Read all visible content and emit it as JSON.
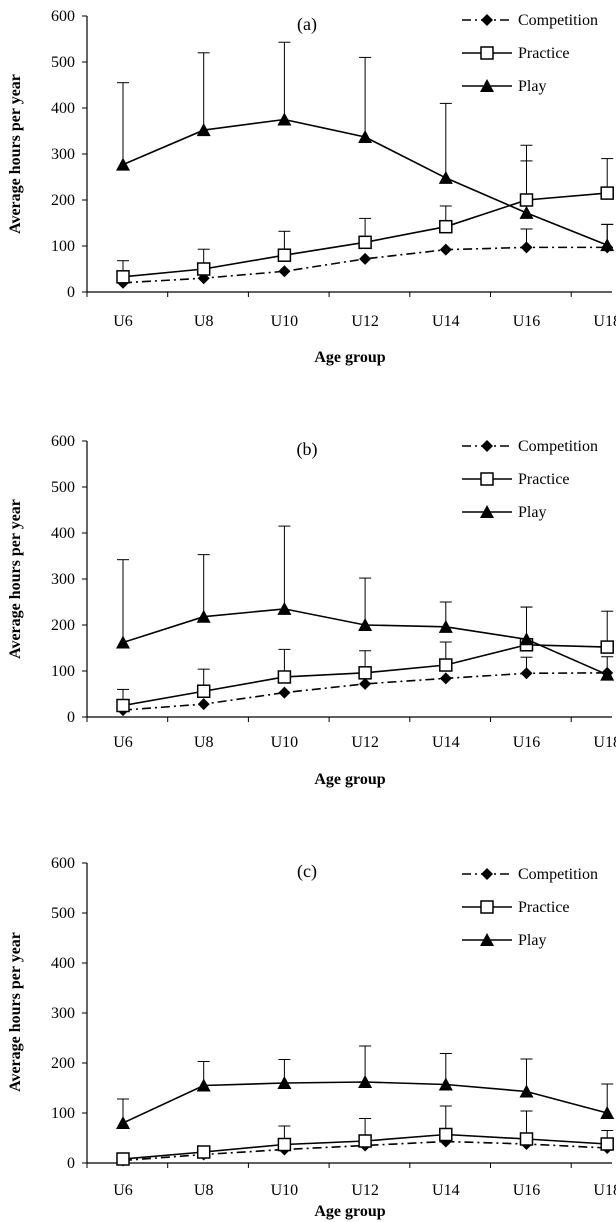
{
  "chart_data": [
    {
      "type": "line",
      "panel_label": "(a)",
      "xlabel": "Age group",
      "ylabel": "Average hours per year",
      "ylim": [
        0,
        600
      ],
      "yticks": [
        0,
        100,
        200,
        300,
        400,
        500,
        600
      ],
      "categories": [
        "U6",
        "U8",
        "U10",
        "U12",
        "U14",
        "U16",
        "U18"
      ],
      "legend_position": "top-right",
      "series": [
        {
          "name": "Competition",
          "marker": "diamond",
          "line": "dash-dot",
          "values": [
            20,
            30,
            45,
            72,
            92,
            97,
            97
          ],
          "errors": [
            0,
            0,
            0,
            0,
            0,
            40,
            50
          ]
        },
        {
          "name": "Practice",
          "marker": "open-square",
          "line": "solid",
          "values": [
            33,
            50,
            80,
            108,
            142,
            200,
            215
          ],
          "errors": [
            35,
            43,
            52,
            52,
            45,
            85,
            75
          ]
        },
        {
          "name": "Play",
          "marker": "triangle",
          "line": "solid",
          "values": [
            277,
            352,
            375,
            337,
            248,
            172,
            102
          ],
          "errors": [
            178,
            168,
            168,
            173,
            162,
            147,
            45
          ]
        }
      ]
    },
    {
      "type": "line",
      "panel_label": "(b)",
      "xlabel": "Age group",
      "ylabel": "Average hours per year",
      "ylim": [
        0,
        600
      ],
      "yticks": [
        0,
        100,
        200,
        300,
        400,
        500,
        600
      ],
      "categories": [
        "U6",
        "U8",
        "U10",
        "U12",
        "U14",
        "U16",
        "U18"
      ],
      "legend_position": "top-right",
      "series": [
        {
          "name": "Competition",
          "marker": "diamond",
          "line": "dash-dot",
          "values": [
            15,
            28,
            53,
            72,
            84,
            95,
            96
          ],
          "errors": [
            0,
            0,
            0,
            0,
            0,
            35,
            35
          ]
        },
        {
          "name": "Practice",
          "marker": "open-square",
          "line": "solid",
          "values": [
            25,
            56,
            87,
            96,
            113,
            157,
            152
          ],
          "errors": [
            35,
            48,
            60,
            48,
            50,
            82,
            78
          ]
        },
        {
          "name": "Play",
          "marker": "triangle",
          "line": "solid",
          "values": [
            162,
            218,
            235,
            200,
            196,
            169,
            92
          ],
          "errors": [
            180,
            135,
            180,
            102,
            54,
            70,
            0
          ]
        }
      ]
    },
    {
      "type": "line",
      "panel_label": "(c)",
      "xlabel": "Age group",
      "ylabel": "Average hours per year",
      "ylim": [
        0,
        600
      ],
      "yticks": [
        0,
        100,
        200,
        300,
        400,
        500,
        600
      ],
      "categories": [
        "U6",
        "U8",
        "U10",
        "U12",
        "U14",
        "U16",
        "U18"
      ],
      "legend_position": "top-right",
      "series": [
        {
          "name": "Competition",
          "marker": "diamond",
          "line": "dash-dot",
          "values": [
            5,
            17,
            27,
            35,
            43,
            38,
            30
          ],
          "errors": [
            0,
            0,
            0,
            0,
            0,
            0,
            0
          ]
        },
        {
          "name": "Practice",
          "marker": "open-square",
          "line": "solid",
          "values": [
            8,
            22,
            37,
            44,
            57,
            48,
            38
          ],
          "errors": [
            10,
            12,
            37,
            45,
            57,
            56,
            27
          ]
        },
        {
          "name": "Play",
          "marker": "triangle",
          "line": "solid",
          "values": [
            80,
            155,
            160,
            162,
            157,
            143,
            100
          ],
          "errors": [
            48,
            48,
            47,
            72,
            62,
            65,
            58
          ]
        }
      ]
    }
  ]
}
